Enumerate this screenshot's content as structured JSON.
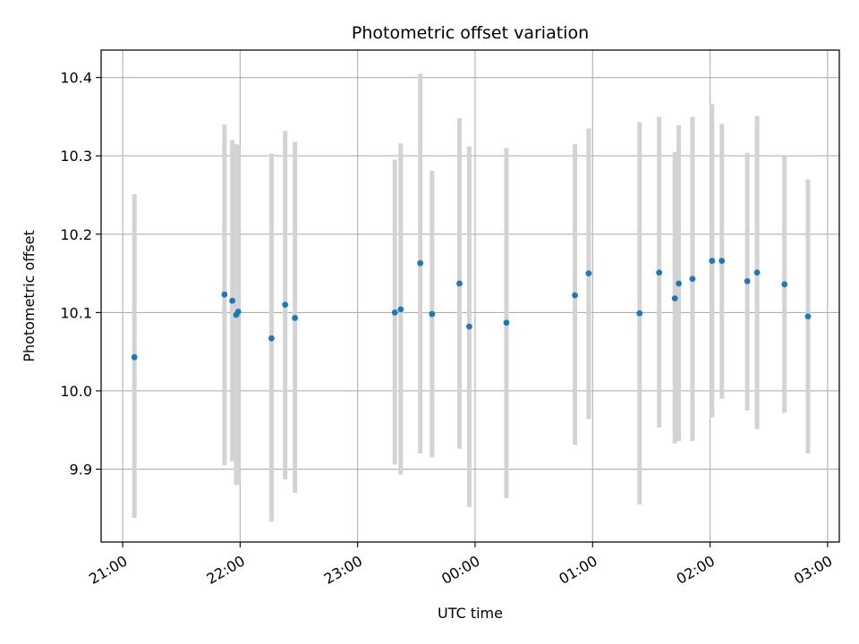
{
  "chart_data": {
    "type": "scatter",
    "title": "Photometric offset variation",
    "xlabel": "UTC time",
    "ylabel": "Photometric offset",
    "xlim": [
      "20:49",
      "03:06"
    ],
    "ylim": [
      9.807,
      10.435
    ],
    "x_ticks": [
      "21:00",
      "22:00",
      "23:00",
      "00:00",
      "01:00",
      "02:00",
      "03:00"
    ],
    "y_ticks": [
      "9.9",
      "10.0",
      "10.1",
      "10.2",
      "10.3",
      "10.4"
    ],
    "grid": true,
    "colors": {
      "point": "#1f77b4",
      "errorbar": "#d3d3d3",
      "grid": "#b0b0b0"
    },
    "series": [
      {
        "points": [
          {
            "x": "21:06",
            "y": 10.043,
            "lo": 9.838,
            "hi": 10.251
          },
          {
            "x": "21:52",
            "y": 10.123,
            "lo": 9.905,
            "hi": 10.34
          },
          {
            "x": "21:56",
            "y": 10.115,
            "lo": 9.91,
            "hi": 10.32
          },
          {
            "x": "21:58",
            "y": 10.097,
            "lo": 9.88,
            "hi": 10.315
          },
          {
            "x": "21:59",
            "y": 10.101,
            "lo": 9.88,
            "hi": 10.314
          },
          {
            "x": "22:16",
            "y": 10.067,
            "lo": 9.833,
            "hi": 10.303
          },
          {
            "x": "22:23",
            "y": 10.11,
            "lo": 9.887,
            "hi": 10.332
          },
          {
            "x": "22:28",
            "y": 10.093,
            "lo": 9.87,
            "hi": 10.318
          },
          {
            "x": "23:19",
            "y": 10.1,
            "lo": 9.906,
            "hi": 10.295
          },
          {
            "x": "23:22",
            "y": 10.104,
            "lo": 9.893,
            "hi": 10.316
          },
          {
            "x": "23:32",
            "y": 10.163,
            "lo": 9.92,
            "hi": 10.405
          },
          {
            "x": "23:38",
            "y": 10.098,
            "lo": 9.915,
            "hi": 10.281
          },
          {
            "x": "23:52",
            "y": 10.137,
            "lo": 9.926,
            "hi": 10.348
          },
          {
            "x": "23:57",
            "y": 10.082,
            "lo": 9.852,
            "hi": 10.312
          },
          {
            "x": "00:16",
            "y": 10.087,
            "lo": 9.863,
            "hi": 10.31
          },
          {
            "x": "00:51",
            "y": 10.122,
            "lo": 9.931,
            "hi": 10.315
          },
          {
            "x": "00:58",
            "y": 10.15,
            "lo": 9.964,
            "hi": 10.335
          },
          {
            "x": "01:24",
            "y": 10.099,
            "lo": 9.855,
            "hi": 10.343
          },
          {
            "x": "01:34",
            "y": 10.151,
            "lo": 9.953,
            "hi": 10.35
          },
          {
            "x": "01:42",
            "y": 10.118,
            "lo": 9.933,
            "hi": 10.305
          },
          {
            "x": "01:44",
            "y": 10.137,
            "lo": 9.936,
            "hi": 10.339
          },
          {
            "x": "01:51",
            "y": 10.143,
            "lo": 9.936,
            "hi": 10.35
          },
          {
            "x": "02:01",
            "y": 10.166,
            "lo": 9.966,
            "hi": 10.366
          },
          {
            "x": "02:06",
            "y": 10.166,
            "lo": 9.99,
            "hi": 10.341
          },
          {
            "x": "02:19",
            "y": 10.14,
            "lo": 9.975,
            "hi": 10.304
          },
          {
            "x": "02:24",
            "y": 10.151,
            "lo": 9.951,
            "hi": 10.351
          },
          {
            "x": "02:38",
            "y": 10.136,
            "lo": 9.972,
            "hi": 10.3
          },
          {
            "x": "02:50",
            "y": 10.095,
            "lo": 9.92,
            "hi": 10.27
          }
        ]
      }
    ]
  }
}
